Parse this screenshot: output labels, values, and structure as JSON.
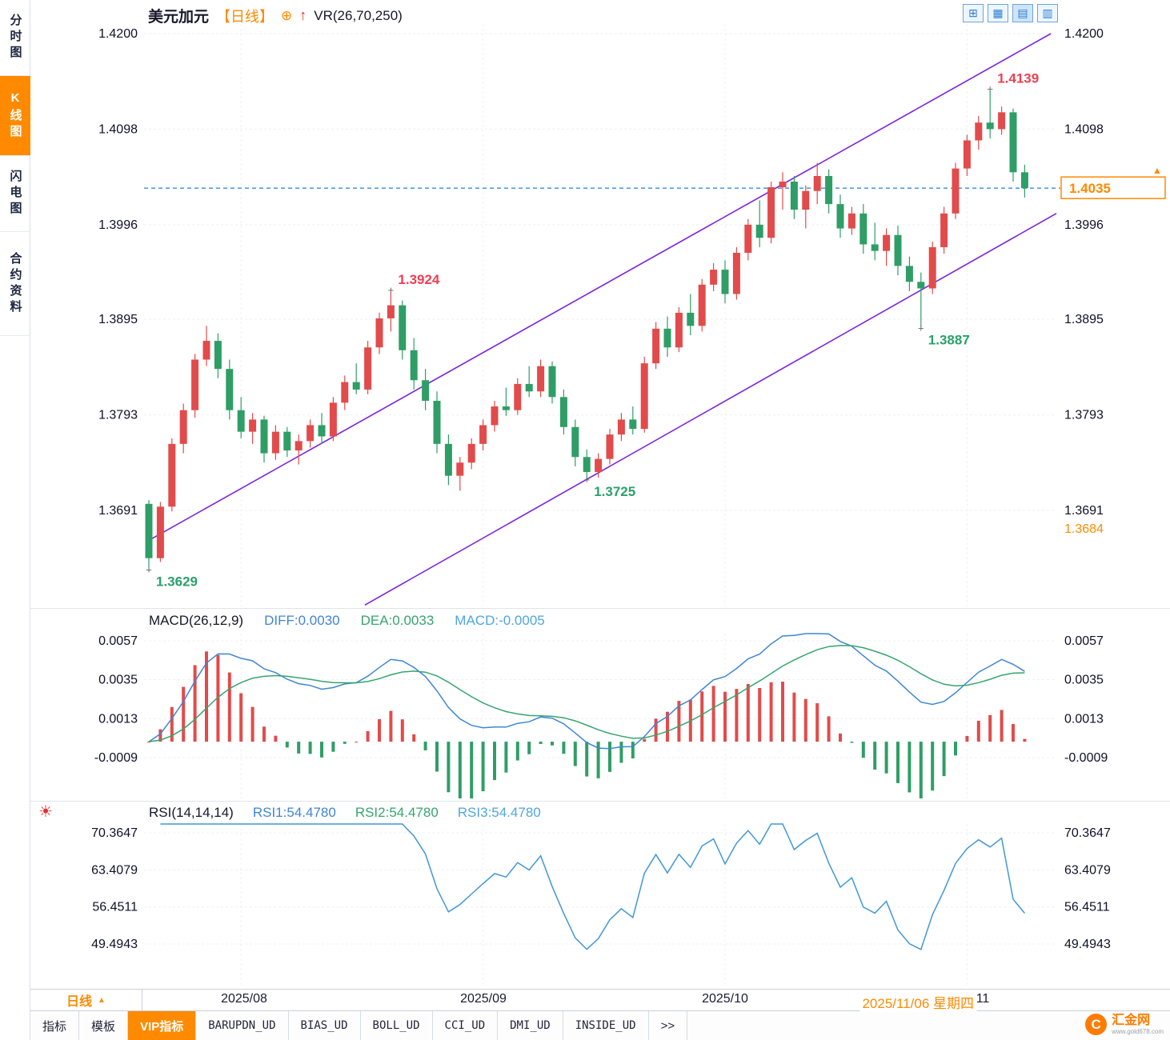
{
  "colors": {
    "up": "#e24b4b",
    "down": "#2f9e66",
    "accent": "#ff8a00",
    "axis_text": "#101028",
    "trendline": "#7b24e0",
    "dotted_line": "#2f8de8",
    "diff_line": "#3f86d6",
    "dea_line": "#36a56f",
    "rsi_line": "#3f97d8",
    "label_red": "#f03e52",
    "label_green": "#2aa06b"
  },
  "icons": {
    "circle_plus": "⊕",
    "up_arrow": "↑",
    "triangle_up": "▲",
    "settings_sun": "☀",
    "layout_grid": "⊞",
    "layout_multi_pane": "▦",
    "layout_chart_pane": "▤",
    "layout_columns": "▥",
    "logo_glyph": "C",
    "more": ">>"
  },
  "sidebar": {
    "items": [
      {
        "label": "分时图",
        "active": false
      },
      {
        "label": "K线图",
        "active": true
      },
      {
        "label": "闪电图",
        "active": false
      },
      {
        "label": "合约资料",
        "active": false
      }
    ]
  },
  "header": {
    "symbol": "美元加元",
    "period": "【日线】",
    "overlay_indicator": "VR(26,70,250)"
  },
  "macd_header": {
    "title": "MACD(26,12,9)",
    "diff": "DIFF:0.0030",
    "dea": "DEA:0.0033",
    "macd": "MACD:-0.0005"
  },
  "rsi_header": {
    "title": "RSI(14,14,14)",
    "rsi1": "RSI1:54.4780",
    "rsi2": "RSI2:54.4780",
    "rsi3": "RSI3:54.4780"
  },
  "price_axis": {
    "current": "1.4035",
    "extra_right": "1.3684"
  },
  "xaxis": {
    "period_button": "日线",
    "labels": [
      {
        "text": "2025/08"
      },
      {
        "text": "2025/09"
      },
      {
        "text": "2025/10"
      },
      {
        "text": "2025/11"
      }
    ],
    "crosshair_date": "2025/11/06 星期四"
  },
  "tabbar": {
    "tabs": [
      "指标",
      "模板",
      "VIP指标",
      "BARUPDN_UD",
      "BIAS_UD",
      "BOLL_UD",
      "CCI_UD",
      "DMI_UD",
      "INSIDE_UD",
      ">>"
    ]
  },
  "logo": {
    "name": "汇金网",
    "sub": "www.gold678.com"
  },
  "chart_data": {
    "type": "candlestick",
    "symbol": "美元加元",
    "period": "日线",
    "main_ticks": [
      1.42,
      1.4098,
      1.3996,
      1.3895,
      1.3793,
      1.3691
    ],
    "macd_ticks": [
      0.0057,
      0.0035,
      0.0013,
      -0.0009
    ],
    "rsi_ticks": [
      70.3647,
      63.4079,
      56.4511,
      49.4943
    ],
    "current_price": 1.4035,
    "right_axis_extra": 1.3684,
    "macd_display": {
      "diff": 0.003,
      "dea": 0.0033,
      "macd": -0.0005
    },
    "rsi_display": {
      "rsi1": 54.478,
      "rsi2": 54.478,
      "rsi3": 54.478
    },
    "month_ticks": [
      {
        "idx": 8,
        "label": "2025/08"
      },
      {
        "idx": 29,
        "label": "2025/09"
      },
      {
        "idx": 50,
        "label": "2025/10"
      },
      {
        "idx": 71,
        "label": "2025/11"
      }
    ],
    "trendlines": [
      {
        "x1": 0.007,
        "p1": 1.366,
        "x2": 0.994,
        "p2": 1.42
      },
      {
        "x1": 0.242,
        "p1": 1.359,
        "x2": 1.0,
        "p2": 1.4008
      }
    ],
    "annotations": [
      {
        "idx": 0,
        "price": 1.3629,
        "text": "1.3629",
        "color": "green",
        "pos": "below"
      },
      {
        "idx": 21,
        "price": 1.3924,
        "text": "1.3924",
        "color": "red",
        "pos": "above"
      },
      {
        "idx": 38,
        "price": 1.3725,
        "text": "1.3725",
        "color": "green",
        "pos": "below"
      },
      {
        "idx": 67,
        "price": 1.3887,
        "text": "1.3887",
        "color": "green",
        "pos": "below"
      },
      {
        "idx": 73,
        "price": 1.4139,
        "text": "1.4139",
        "color": "red",
        "pos": "above"
      }
    ],
    "candles": [
      [
        1.3698,
        1.3702,
        1.3629,
        1.364
      ],
      [
        1.364,
        1.37,
        1.3636,
        1.3695
      ],
      [
        1.3695,
        1.3768,
        1.369,
        1.3762
      ],
      [
        1.3762,
        1.3805,
        1.3752,
        1.3798
      ],
      [
        1.3798,
        1.3858,
        1.379,
        1.3852
      ],
      [
        1.3852,
        1.3888,
        1.3845,
        1.3872
      ],
      [
        1.3872,
        1.388,
        1.3832,
        1.3842
      ],
      [
        1.3842,
        1.3852,
        1.3788,
        1.3798
      ],
      [
        1.3798,
        1.3812,
        1.3768,
        1.3775
      ],
      [
        1.3775,
        1.3795,
        1.3762,
        1.3788
      ],
      [
        1.3788,
        1.3792,
        1.3742,
        1.3752
      ],
      [
        1.3752,
        1.3782,
        1.3745,
        1.3775
      ],
      [
        1.3775,
        1.378,
        1.3748,
        1.3755
      ],
      [
        1.3755,
        1.3772,
        1.374,
        1.3765
      ],
      [
        1.3765,
        1.3788,
        1.3758,
        1.3782
      ],
      [
        1.3782,
        1.3795,
        1.3762,
        1.377
      ],
      [
        1.377,
        1.3812,
        1.3765,
        1.3806
      ],
      [
        1.3806,
        1.3835,
        1.3798,
        1.3828
      ],
      [
        1.3828,
        1.3848,
        1.3815,
        1.382
      ],
      [
        1.382,
        1.3872,
        1.3815,
        1.3865
      ],
      [
        1.3865,
        1.3902,
        1.3858,
        1.3896
      ],
      [
        1.3896,
        1.3924,
        1.3882,
        1.391
      ],
      [
        1.391,
        1.3915,
        1.3852,
        1.3862
      ],
      [
        1.3862,
        1.3875,
        1.382,
        1.383
      ],
      [
        1.383,
        1.3842,
        1.3798,
        1.3808
      ],
      [
        1.3808,
        1.3818,
        1.3752,
        1.3762
      ],
      [
        1.3762,
        1.3772,
        1.3718,
        1.3728
      ],
      [
        1.3728,
        1.3748,
        1.3712,
        1.3742
      ],
      [
        1.3742,
        1.3768,
        1.3735,
        1.3762
      ],
      [
        1.3762,
        1.3788,
        1.3755,
        1.3782
      ],
      [
        1.3782,
        1.3808,
        1.3775,
        1.3802
      ],
      [
        1.3802,
        1.3822,
        1.3792,
        1.3798
      ],
      [
        1.3798,
        1.3832,
        1.3793,
        1.3826
      ],
      [
        1.3826,
        1.3845,
        1.3812,
        1.3818
      ],
      [
        1.3818,
        1.3852,
        1.3812,
        1.3845
      ],
      [
        1.3845,
        1.385,
        1.3805,
        1.3812
      ],
      [
        1.3812,
        1.382,
        1.3772,
        1.378
      ],
      [
        1.378,
        1.3788,
        1.3738,
        1.3748
      ],
      [
        1.3748,
        1.3756,
        1.3725,
        1.3732
      ],
      [
        1.3732,
        1.3752,
        1.3726,
        1.3746
      ],
      [
        1.3746,
        1.3778,
        1.374,
        1.3772
      ],
      [
        1.3772,
        1.3795,
        1.3765,
        1.3788
      ],
      [
        1.3788,
        1.3802,
        1.3772,
        1.3778
      ],
      [
        1.3778,
        1.3855,
        1.3774,
        1.3848
      ],
      [
        1.3848,
        1.3892,
        1.3842,
        1.3885
      ],
      [
        1.3885,
        1.3898,
        1.3855,
        1.3865
      ],
      [
        1.3865,
        1.3908,
        1.386,
        1.3902
      ],
      [
        1.3902,
        1.3922,
        1.3878,
        1.3888
      ],
      [
        1.3888,
        1.3938,
        1.3882,
        1.3932
      ],
      [
        1.3932,
        1.3955,
        1.3925,
        1.3948
      ],
      [
        1.3948,
        1.3958,
        1.3912,
        1.3922
      ],
      [
        1.3922,
        1.3972,
        1.3916,
        1.3966
      ],
      [
        1.3966,
        1.4002,
        1.3958,
        1.3996
      ],
      [
        1.3996,
        1.4022,
        1.3972,
        1.3982
      ],
      [
        1.3982,
        1.4042,
        1.3976,
        1.4036
      ],
      [
        1.4036,
        1.4052,
        1.4012,
        1.4042
      ],
      [
        1.4042,
        1.4048,
        1.4002,
        1.4012
      ],
      [
        1.4012,
        1.4038,
        1.3992,
        1.4032
      ],
      [
        1.4032,
        1.4062,
        1.4018,
        1.4048
      ],
      [
        1.4048,
        1.4055,
        1.4008,
        1.4018
      ],
      [
        1.4018,
        1.4028,
        1.3982,
        1.3992
      ],
      [
        1.3992,
        1.4015,
        1.3985,
        1.4008
      ],
      [
        1.4008,
        1.4018,
        1.3965,
        1.3975
      ],
      [
        1.3975,
        1.3998,
        1.3958,
        1.3968
      ],
      [
        1.3968,
        1.3992,
        1.3952,
        1.3985
      ],
      [
        1.3985,
        1.3995,
        1.3942,
        1.3952
      ],
      [
        1.3952,
        1.3962,
        1.3925,
        1.3935
      ],
      [
        1.3935,
        1.3945,
        1.3887,
        1.3928
      ],
      [
        1.3928,
        1.3978,
        1.3922,
        1.3972
      ],
      [
        1.3972,
        1.4015,
        1.3965,
        1.4008
      ],
      [
        1.4008,
        1.4062,
        1.4002,
        1.4056
      ],
      [
        1.4056,
        1.4092,
        1.4048,
        1.4086
      ],
      [
        1.4086,
        1.4112,
        1.4076,
        1.4105
      ],
      [
        1.4105,
        1.4139,
        1.4088,
        1.4098
      ],
      [
        1.4098,
        1.4122,
        1.4092,
        1.4116
      ],
      [
        1.4116,
        1.412,
        1.4042,
        1.4052
      ],
      [
        1.4052,
        1.406,
        1.4025,
        1.4035
      ]
    ]
  }
}
